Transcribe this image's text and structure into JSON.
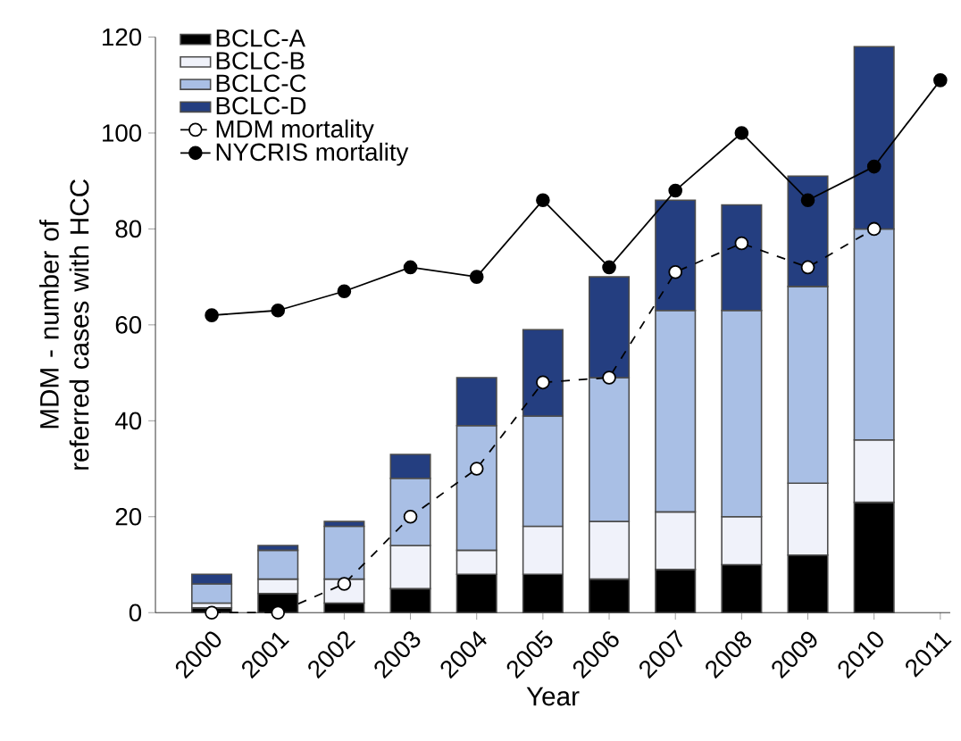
{
  "chart_data": {
    "type": "bar",
    "stacked": true,
    "xlabel": "Year",
    "ylabel": "MDM - number of referred cases with HCC",
    "categories": [
      "2000",
      "2001",
      "2002",
      "2003",
      "2004",
      "2005",
      "2006",
      "2007",
      "2008",
      "2009",
      "2010",
      "2011"
    ],
    "series": [
      {
        "name": "BCLC-A",
        "color": "#000000",
        "values": [
          1,
          4,
          2,
          5,
          8,
          8,
          7,
          9,
          10,
          12,
          23,
          null
        ]
      },
      {
        "name": "BCLC-B",
        "color": "#f0f2fa",
        "values": [
          1,
          3,
          5,
          9,
          5,
          10,
          12,
          12,
          10,
          15,
          13,
          null
        ]
      },
      {
        "name": "BCLC-C",
        "color": "#a9bfe5",
        "values": [
          4,
          6,
          11,
          14,
          26,
          23,
          30,
          42,
          43,
          41,
          44,
          null
        ]
      },
      {
        "name": "BCLC-D",
        "color": "#243e80",
        "values": [
          2,
          1,
          1,
          5,
          10,
          18,
          21,
          23,
          22,
          23,
          38,
          null
        ]
      },
      {
        "name": "MDM mortality",
        "type": "line",
        "color": "#000000",
        "marker": "circle",
        "line_style": "dashed",
        "values": [
          0,
          0,
          6,
          20,
          30,
          48,
          49,
          71,
          77,
          72,
          80,
          null
        ]
      },
      {
        "name": "NYCRIS mortality",
        "type": "line",
        "color": "#000000",
        "marker": "circle",
        "line_style": "solid",
        "values": [
          62,
          63,
          67,
          72,
          70,
          86,
          72,
          88,
          100,
          86,
          93,
          111
        ]
      }
    ],
    "ylim": [
      0,
      120
    ],
    "yticks": [
      0,
      20,
      40,
      60,
      80,
      100,
      120
    ],
    "legend": "top left"
  }
}
